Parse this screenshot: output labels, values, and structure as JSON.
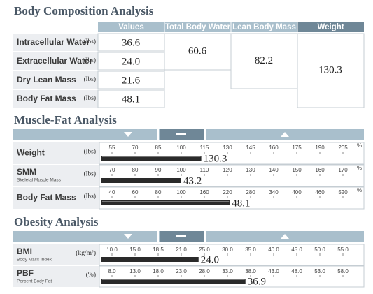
{
  "body_composition": {
    "title": "Body Composition Analysis",
    "headers": [
      "Values",
      "Total Body Water",
      "Lean Body Mass",
      "Weight"
    ],
    "rows": [
      {
        "label": "Intracellular Water",
        "unit": "(lbs)",
        "value": "36.6"
      },
      {
        "label": "Extracellular Water",
        "unit": "(lbs)",
        "value": "24.0"
      },
      {
        "label": "Dry Lean Mass",
        "unit": "(lbs)",
        "value": "21.6"
      },
      {
        "label": "Body Fat Mass",
        "unit": "(lbs)",
        "value": "48.1"
      }
    ],
    "total_body_water": "60.6",
    "lean_body_mass": "82.2",
    "weight": "130.3"
  },
  "muscle_fat": {
    "title": "Muscle-Fat Analysis",
    "rows": [
      {
        "label": "Weight",
        "unit": "(lbs)",
        "scale_unit": "%",
        "ticks": [
          55,
          70,
          85,
          100,
          115,
          130,
          145,
          160,
          175,
          190,
          205
        ],
        "bar_percent": 113,
        "value": 130.3
      },
      {
        "label": "SMM",
        "sublabel": "Skeletal Muscle Mass",
        "unit": "(lbs)",
        "scale_unit": "%",
        "ticks": [
          70,
          80,
          90,
          100,
          110,
          120,
          130,
          140,
          150,
          160,
          170
        ],
        "bar_percent": 100,
        "value": 43.2
      },
      {
        "label": "Body Fat Mass",
        "unit": "(lbs)",
        "scale_unit": "%",
        "ticks": [
          40,
          60,
          80,
          100,
          160,
          220,
          280,
          340,
          400,
          460,
          520
        ],
        "bar_percent": 226,
        "value": 48.1
      }
    ]
  },
  "obesity": {
    "title": "Obesity Analysis",
    "rows": [
      {
        "label": "BMI",
        "sublabel": "Body Mass Index",
        "unit": "(kg/m²)",
        "ticks": [
          {
            "value": 10,
            "label": "10.0"
          },
          {
            "value": 15,
            "label": "15.0"
          },
          18.5,
          {
            "value": 21,
            "label": "21.0"
          },
          {
            "value": 25,
            "label": "25.0"
          },
          {
            "value": 30,
            "label": "30.0"
          },
          {
            "value": 35,
            "label": "35.0"
          },
          {
            "value": 40,
            "label": "40.0"
          },
          {
            "value": 45,
            "label": "45.0"
          },
          {
            "value": 50,
            "label": "50.0"
          },
          {
            "value": 55,
            "label": "55.0"
          }
        ],
        "value": 24,
        "value_label": "24.0"
      },
      {
        "label": "PBF",
        "sublabel": "Percent Body Fat",
        "unit": "(%)",
        "ticks": [
          {
            "value": 8,
            "label": "8.0"
          },
          {
            "value": 13,
            "label": "13.0"
          },
          {
            "value": 18,
            "label": "18.0"
          },
          {
            "value": 23,
            "label": "23.0"
          },
          {
            "value": 28,
            "label": "28.0"
          },
          {
            "value": 33,
            "label": "33.0"
          },
          {
            "value": 38,
            "label": "38.0"
          },
          {
            "value": 43,
            "label": "43.0"
          },
          {
            "value": 48,
            "label": "48.0"
          },
          {
            "value": 53,
            "label": "53.0"
          },
          {
            "value": 58,
            "label": "58.0"
          }
        ],
        "value": 36.9
      }
    ]
  }
}
